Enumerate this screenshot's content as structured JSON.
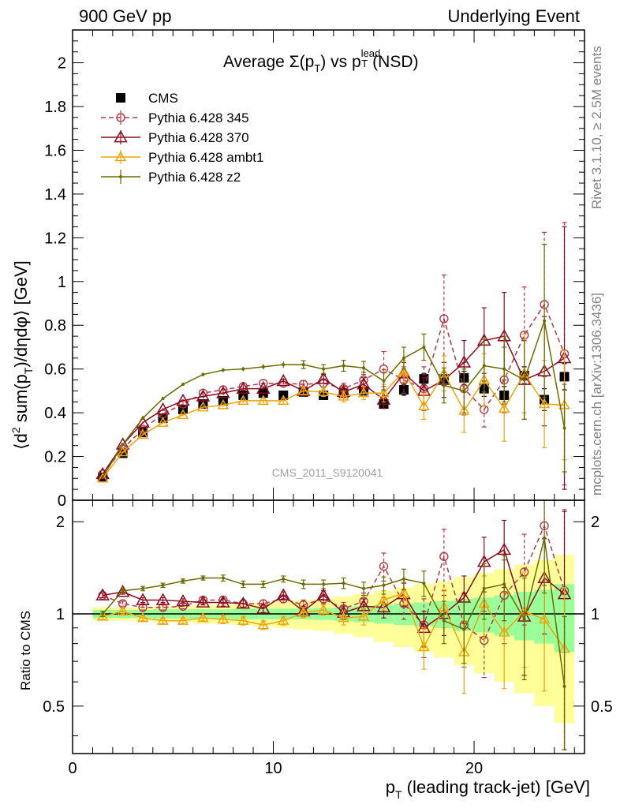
{
  "header": {
    "left": "900 GeV pp",
    "right": "Underlying Event"
  },
  "side_labels": {
    "rivet": "Rivet 3.1.10, ≥ 2.5M events",
    "mcplots": "mcplots.cern.ch [arXiv:1306.3436]"
  },
  "watermark": "CMS_2011_S9120041",
  "chart_data": [
    {
      "type": "scatter",
      "title": "Average Σ(p_T) vs p_T^lead (NSD)",
      "title_parts": {
        "pre": "Average ",
        "sigma": "Σ(p",
        "sub_t": "T",
        "mid": ") vs p",
        "sup_lead": "lead",
        "post": "(NSD)"
      },
      "ylabel": "⟨d² sum(p_T)/dηdφ⟩ [GeV]",
      "ylabel_parts": {
        "a": "⟨d",
        "b": "2",
        "c": " sum(p",
        "d": "T",
        "e": ")/dηdφ⟩ [GeV]"
      },
      "xlabel": "p_T (leading track-jet) [GeV]",
      "xlim": [
        0,
        25.5
      ],
      "ylim": [
        0,
        2.15
      ],
      "y_ticks": [
        "0",
        "0.2",
        "0.4",
        "0.6",
        "0.8",
        "1",
        "1.2",
        "1.4",
        "1.6",
        "1.8",
        "2"
      ],
      "x_ticks": [
        "0",
        "10",
        "20"
      ],
      "x": [
        1.5,
        2.5,
        3.5,
        4.5,
        5.5,
        6.5,
        7.5,
        8.5,
        9.5,
        10.5,
        11.5,
        12.5,
        13.5,
        14.5,
        15.5,
        16.5,
        17.5,
        18.5,
        19.5,
        20.5,
        21.5,
        22.5,
        23.5,
        24.5
      ],
      "series": [
        {
          "name": "CMS",
          "color": "#000000",
          "marker": "square",
          "values": [
            0.105,
            0.215,
            0.31,
            0.375,
            0.415,
            0.44,
            0.455,
            0.48,
            0.49,
            0.48,
            0.495,
            0.48,
            0.49,
            0.5,
            0.44,
            0.505,
            0.555,
            0.555,
            0.56,
            0.51,
            0.48,
            0.57,
            0.46,
            0.565
          ],
          "errors": [
            0.005,
            0.005,
            0.005,
            0.005,
            0.005,
            0.005,
            0.005,
            0.005,
            0.005,
            0.005,
            0.008,
            0.01,
            0.012,
            0.015,
            0.02,
            0.025,
            0.025,
            0.03,
            0.03,
            0.035,
            0.04,
            0.04,
            0.05,
            0.06
          ]
        },
        {
          "name": "Pythia 6.428 345",
          "color": "#b03a48",
          "marker": "circle",
          "dashed": true,
          "values": [
            0.12,
            0.235,
            0.325,
            0.395,
            0.44,
            0.49,
            0.505,
            0.52,
            0.535,
            0.535,
            0.53,
            0.535,
            0.51,
            0.55,
            0.6,
            0.55,
            0.51,
            0.83,
            0.51,
            0.415,
            0.55,
            0.755,
            0.895,
            0.67
          ],
          "errors": [
            0.003,
            0.004,
            0.005,
            0.006,
            0.007,
            0.008,
            0.009,
            0.01,
            0.012,
            0.015,
            0.018,
            0.02,
            0.025,
            0.035,
            0.08,
            0.06,
            0.1,
            0.2,
            0.12,
            0.08,
            0.15,
            0.22,
            0.33,
            0.6
          ]
        },
        {
          "name": "Pythia 6.428 370",
          "color": "#8b0a1e",
          "marker": "triangle-open",
          "values": [
            0.12,
            0.255,
            0.355,
            0.415,
            0.455,
            0.475,
            0.49,
            0.51,
            0.51,
            0.545,
            0.5,
            0.555,
            0.495,
            0.53,
            0.46,
            0.58,
            0.5,
            0.55,
            0.63,
            0.73,
            0.75,
            0.55,
            0.59,
            0.65
          ],
          "errors": [
            0.003,
            0.004,
            0.005,
            0.006,
            0.007,
            0.008,
            0.009,
            0.01,
            0.012,
            0.015,
            0.018,
            0.02,
            0.025,
            0.03,
            0.04,
            0.05,
            0.06,
            0.08,
            0.1,
            0.15,
            0.2,
            0.18,
            0.25,
            0.6
          ]
        },
        {
          "name": "Pythia 6.428 ambt1",
          "color": "#f0a30a",
          "marker": "triangle-open",
          "values": [
            0.1,
            0.22,
            0.3,
            0.355,
            0.39,
            0.425,
            0.435,
            0.455,
            0.455,
            0.455,
            0.5,
            0.495,
            0.475,
            0.49,
            0.49,
            0.59,
            0.43,
            0.58,
            0.41,
            0.55,
            0.42,
            0.58,
            0.44,
            0.435
          ],
          "errors": [
            0.003,
            0.004,
            0.005,
            0.006,
            0.007,
            0.008,
            0.009,
            0.01,
            0.012,
            0.015,
            0.018,
            0.02,
            0.025,
            0.03,
            0.04,
            0.05,
            0.06,
            0.08,
            0.1,
            0.12,
            0.15,
            0.18,
            0.2,
            0.25
          ]
        },
        {
          "name": "Pythia 6.428 z2",
          "color": "#6b6b00",
          "marker": "dot",
          "values": [
            0.105,
            0.255,
            0.375,
            0.465,
            0.53,
            0.575,
            0.595,
            0.6,
            0.61,
            0.62,
            0.62,
            0.6,
            0.615,
            0.605,
            0.545,
            0.65,
            0.7,
            0.525,
            0.5,
            0.615,
            0.6,
            0.55,
            0.82,
            0.33
          ],
          "errors": [
            0.003,
            0.004,
            0.005,
            0.006,
            0.007,
            0.008,
            0.009,
            0.01,
            0.012,
            0.015,
            0.018,
            0.02,
            0.025,
            0.03,
            0.04,
            0.05,
            0.06,
            0.08,
            0.1,
            0.12,
            0.15,
            0.18,
            0.35,
            0.2
          ]
        }
      ]
    },
    {
      "type": "scatter",
      "ylabel": "Ratio to CMS",
      "xlabel": "p_T (leading track-jet) [GeV]",
      "xlim": [
        0,
        25.5
      ],
      "ylim": [
        0.35,
        2.35
      ],
      "y_ticks": [
        "0.5",
        "1",
        "2"
      ],
      "band_x_edges": [
        1,
        2,
        3,
        4,
        5,
        6,
        7,
        8,
        9,
        10,
        11,
        12,
        13,
        14,
        15,
        16,
        17,
        18,
        19,
        20,
        21,
        22,
        23,
        24,
        25
      ],
      "band_inner": [
        0.03,
        0.03,
        0.03,
        0.035,
        0.035,
        0.035,
        0.035,
        0.04,
        0.04,
        0.04,
        0.04,
        0.045,
        0.05,
        0.06,
        0.07,
        0.08,
        0.09,
        0.1,
        0.12,
        0.13,
        0.15,
        0.18,
        0.2,
        0.25
      ],
      "band_outer": [
        0.05,
        0.05,
        0.05,
        0.06,
        0.06,
        0.07,
        0.07,
        0.08,
        0.09,
        0.1,
        0.11,
        0.12,
        0.14,
        0.16,
        0.19,
        0.22,
        0.25,
        0.28,
        0.32,
        0.36,
        0.4,
        0.45,
        0.5,
        0.56
      ],
      "series": [
        {
          "name": "Pythia 6.428 345",
          "values": [
            1.15,
            1.08,
            1.05,
            1.05,
            1.06,
            1.11,
            1.11,
            1.08,
            1.08,
            1.12,
            1.07,
            1.12,
            1.04,
            1.1,
            1.43,
            1.08,
            0.92,
            1.54,
            0.92,
            0.82,
            1.15,
            1.37,
            1.94,
            1.19
          ],
          "errors": [
            0.02,
            0.02,
            0.02,
            0.02,
            0.02,
            0.02,
            0.03,
            0.03,
            0.03,
            0.03,
            0.04,
            0.04,
            0.05,
            0.07,
            0.15,
            0.12,
            0.2,
            0.35,
            0.25,
            0.2,
            0.35,
            0.45,
            0.7,
            1.0
          ]
        },
        {
          "name": "Pythia 6.428 370",
          "values": [
            1.15,
            1.18,
            1.11,
            1.11,
            1.1,
            1.09,
            1.09,
            1.08,
            1.04,
            1.15,
            1.02,
            1.15,
            1.01,
            1.06,
            1.05,
            1.16,
            0.9,
            1.0,
            1.13,
            1.48,
            1.62,
            0.98,
            1.31,
            1.16
          ],
          "errors": [
            0.02,
            0.02,
            0.02,
            0.02,
            0.02,
            0.02,
            0.03,
            0.03,
            0.03,
            0.03,
            0.04,
            0.04,
            0.05,
            0.06,
            0.08,
            0.1,
            0.12,
            0.15,
            0.2,
            0.3,
            0.4,
            0.35,
            0.45,
            1.0
          ]
        },
        {
          "name": "Pythia 6.428 ambt1",
          "values": [
            0.98,
            1.02,
            0.97,
            0.95,
            0.95,
            0.97,
            0.96,
            0.95,
            0.92,
            0.95,
            1.01,
            1.03,
            0.97,
            0.98,
            1.11,
            1.17,
            0.78,
            1.05,
            0.75,
            1.08,
            0.87,
            1.02,
            0.96,
            0.77
          ],
          "errors": [
            0.02,
            0.02,
            0.02,
            0.02,
            0.02,
            0.02,
            0.03,
            0.03,
            0.03,
            0.03,
            0.04,
            0.04,
            0.05,
            0.06,
            0.08,
            0.1,
            0.12,
            0.15,
            0.2,
            0.25,
            0.3,
            0.35,
            0.4,
            0.45
          ]
        },
        {
          "name": "Pythia 6.428 z2",
          "values": [
            1.0,
            1.19,
            1.21,
            1.24,
            1.28,
            1.31,
            1.31,
            1.25,
            1.25,
            1.3,
            1.25,
            1.25,
            1.26,
            1.21,
            1.24,
            1.3,
            1.26,
            0.95,
            0.89,
            1.21,
            1.25,
            0.96,
            1.77,
            0.58
          ],
          "errors": [
            0.02,
            0.02,
            0.02,
            0.02,
            0.02,
            0.02,
            0.03,
            0.03,
            0.03,
            0.03,
            0.04,
            0.04,
            0.05,
            0.06,
            0.08,
            0.1,
            0.12,
            0.15,
            0.2,
            0.25,
            0.3,
            0.35,
            0.6,
            0.4
          ]
        }
      ]
    }
  ]
}
